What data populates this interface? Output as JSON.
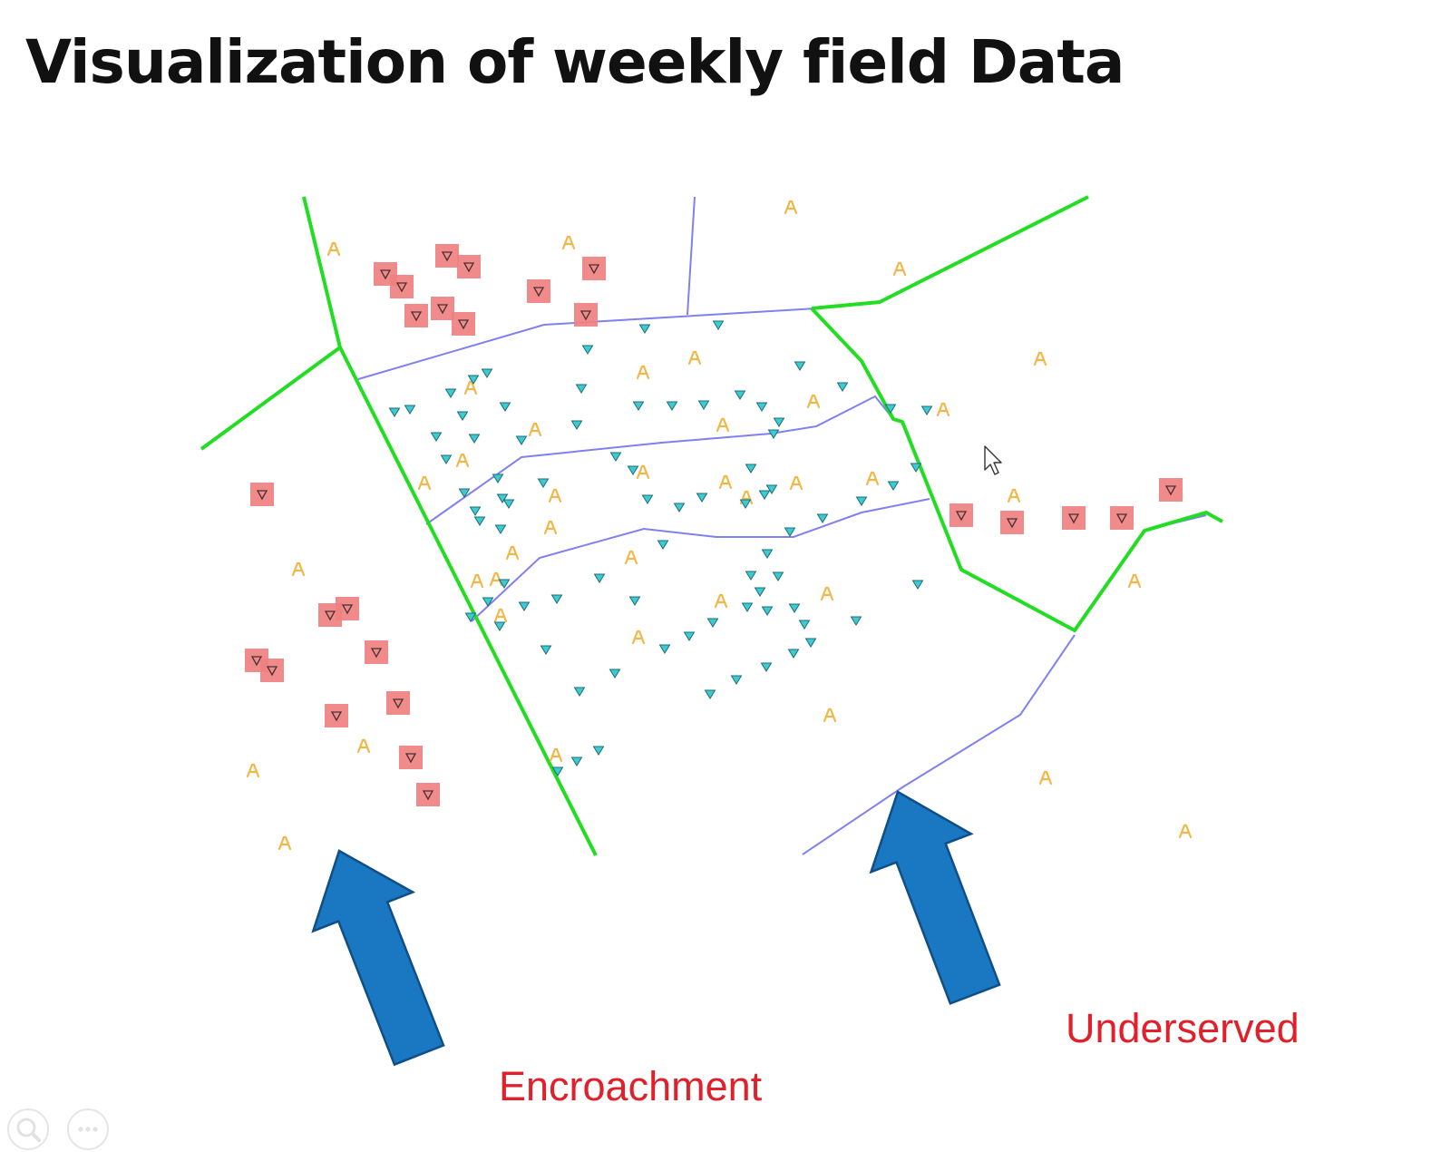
{
  "slide": {
    "title": "Visualization of weekly field Data"
  },
  "map": {
    "boundary_color": "#22dd22",
    "road_color": "#8080f0",
    "encroachment_marker_fill": "#f08080",
    "point_marker_fill": "#3ecad0",
    "household_marker_color": "#f0b84a",
    "arrow_color": "#1a78c2"
  },
  "annotations": {
    "encroachment": "Encroachment",
    "underserved": "Underserved",
    "label_color": "#e0202a"
  },
  "controls": [
    {
      "name": "zoom-search",
      "icon": "search-icon"
    },
    {
      "name": "more-options",
      "icon": "more-icon"
    }
  ]
}
